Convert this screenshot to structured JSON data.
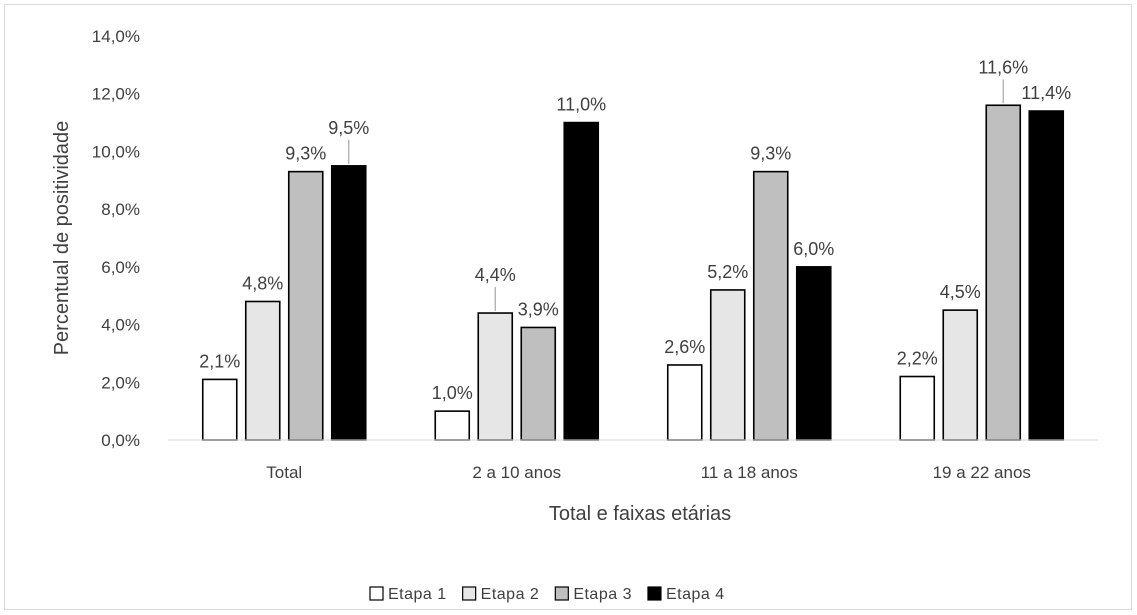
{
  "chart_data": {
    "type": "bar",
    "title": "",
    "xlabel": "Total e faixas etárias",
    "ylabel": "Percentual de positividade",
    "ylim": [
      0,
      14
    ],
    "yticks": [
      "0,0%",
      "2,0%",
      "4,0%",
      "6,0%",
      "8,0%",
      "10,0%",
      "12,0%",
      "14,0%"
    ],
    "grid": false,
    "legend_position": "bottom",
    "categories": [
      "Total",
      "2 a 10 anos",
      "11 a 18 anos",
      "19 a 22 anos"
    ],
    "series": [
      {
        "name": "Etapa 1",
        "color": "#ffffff",
        "values": [
          2.1,
          1.0,
          2.6,
          2.2
        ],
        "labels": [
          "2,1%",
          "1,0%",
          "2,6%",
          "2,2%"
        ]
      },
      {
        "name": "Etapa 2",
        "color": "#e6e6e6",
        "values": [
          4.8,
          4.4,
          5.2,
          4.5
        ],
        "labels": [
          "4,8%",
          "4,4%",
          "5,2%",
          "4,5%"
        ]
      },
      {
        "name": "Etapa 3",
        "color": "#bfbfbf",
        "values": [
          9.3,
          3.9,
          9.3,
          11.6
        ],
        "labels": [
          "9,3%",
          "3,9%",
          "9,3%",
          "11,6%"
        ]
      },
      {
        "name": "Etapa 4",
        "color": "#000000",
        "values": [
          9.5,
          11.0,
          6.0,
          11.4
        ],
        "labels": [
          "9,5%",
          "11,0%",
          "6,0%",
          "11,4%"
        ]
      }
    ]
  }
}
